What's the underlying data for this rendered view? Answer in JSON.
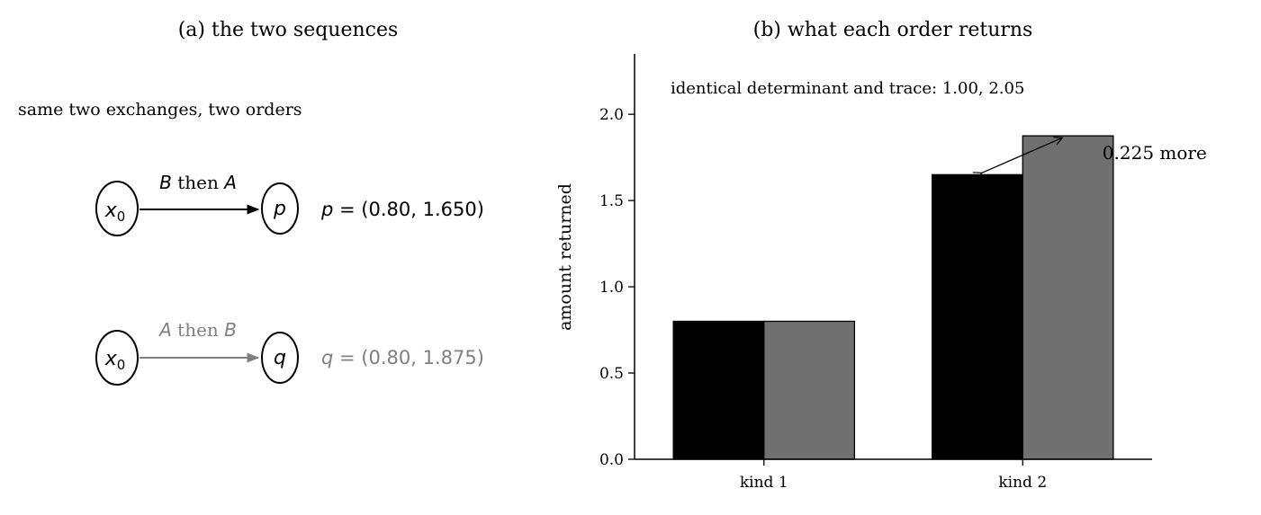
{
  "left_panel": {
    "title": "(a) the two sequences",
    "subtitle": "same two exchanges, two orders",
    "rows": [
      {
        "start_base": "x",
        "start_sub": "0",
        "arrow_first": "B",
        "arrow_mid": " then ",
        "arrow_second": "A",
        "end_node": "p",
        "result_var": "p",
        "result_eq": " = (0.80, 1.650)",
        "color": "#000000"
      },
      {
        "start_base": "x",
        "start_sub": "0",
        "arrow_first": "A",
        "arrow_mid": " then ",
        "arrow_second": "B",
        "end_node": "q",
        "result_var": "q",
        "result_eq": " = (0.80, 1.875)",
        "color": "#808080"
      }
    ]
  },
  "chart_data": {
    "type": "bar",
    "title": "(b) what each order returns",
    "ylabel": "amount returned",
    "xlabel": "",
    "categories": [
      "kind 1",
      "kind 2"
    ],
    "series": [
      {
        "values": [
          0.8,
          1.65
        ],
        "color": "#000000"
      },
      {
        "values": [
          0.8,
          1.875
        ],
        "color": "#707070"
      }
    ],
    "ylim": [
      0,
      2.35
    ],
    "yticks": [
      0.0,
      0.5,
      1.0,
      1.5,
      2.0
    ],
    "ytick_labels": [
      "0.0",
      "0.5",
      "1.0",
      "1.5",
      "2.0"
    ],
    "grid": false,
    "annotation_top": "identical determinant and trace: 1.00, 2.05",
    "difference_label": "0.225 more"
  }
}
